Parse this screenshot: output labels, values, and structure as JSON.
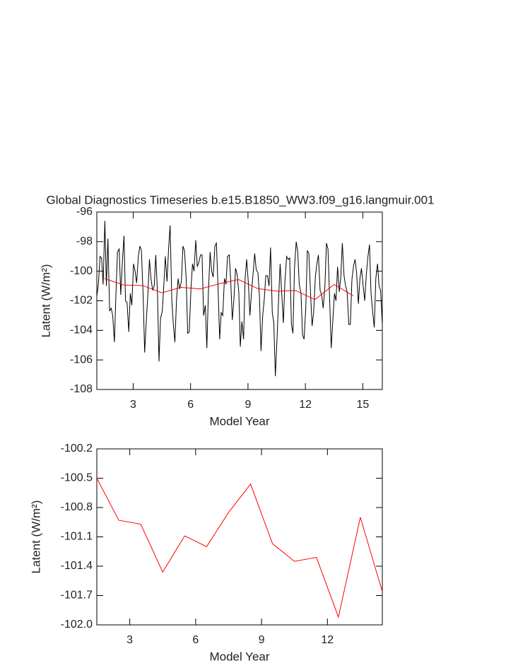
{
  "chart_data": [
    {
      "type": "line",
      "title": "Global Diagnostics Timeseries b.e15.B1850_WW3.f09_g16.langmuir.001",
      "xlabel": "Model Year",
      "ylabel": "Latent (W/m²)",
      "xlim": [
        1.1,
        16.02
      ],
      "xticks": [
        3,
        6,
        9,
        12,
        15
      ],
      "ylim": [
        -108,
        -96
      ],
      "yticks": [
        -108,
        -106,
        -104,
        -102,
        -100,
        -98,
        -96
      ],
      "series": [
        {
          "color": "#000000",
          "x": [
            1.1,
            1.18,
            1.27,
            1.35,
            1.43,
            1.52,
            1.6,
            1.68,
            1.77,
            1.85,
            1.93,
            2.02,
            2.1,
            2.18,
            2.27,
            2.35,
            2.43,
            2.52,
            2.6,
            2.68,
            2.77,
            2.85,
            2.93,
            3.02,
            3.1,
            3.18,
            3.27,
            3.35,
            3.43,
            3.52,
            3.6,
            3.68,
            3.77,
            3.85,
            3.93,
            4.02,
            4.1,
            4.18,
            4.27,
            4.35,
            4.43,
            4.52,
            4.6,
            4.68,
            4.77,
            4.85,
            4.93,
            5.02,
            5.1,
            5.18,
            5.27,
            5.35,
            5.43,
            5.52,
            5.6,
            5.68,
            5.77,
            5.85,
            5.93,
            6.02,
            6.1,
            6.18,
            6.27,
            6.35,
            6.43,
            6.52,
            6.6,
            6.68,
            6.77,
            6.85,
            6.93,
            7.02,
            7.1,
            7.18,
            7.27,
            7.35,
            7.43,
            7.52,
            7.6,
            7.68,
            7.77,
            7.85,
            7.93,
            8.02,
            8.1,
            8.18,
            8.27,
            8.35,
            8.43,
            8.52,
            8.6,
            8.68,
            8.77,
            8.85,
            8.93,
            9.02,
            9.1,
            9.18,
            9.27,
            9.35,
            9.43,
            9.52,
            9.6,
            9.68,
            9.77,
            9.85,
            9.93,
            10.02,
            10.1,
            10.18,
            10.27,
            10.35,
            10.43,
            10.52,
            10.6,
            10.68,
            10.77,
            10.85,
            10.93,
            11.02,
            11.1,
            11.18,
            11.27,
            11.35,
            11.43,
            11.52,
            11.6,
            11.68,
            11.77,
            11.85,
            11.93,
            12.02,
            12.1,
            12.18,
            12.27,
            12.35,
            12.43,
            12.52,
            12.6,
            12.68,
            12.77,
            12.85,
            12.93,
            13.02,
            13.1,
            13.18,
            13.27,
            13.35,
            13.43,
            13.52,
            13.6,
            13.68,
            13.77,
            13.85,
            13.93,
            14.02,
            14.1,
            14.18,
            14.27,
            14.35,
            14.43,
            14.52,
            14.6,
            14.68,
            14.77,
            14.85,
            14.93,
            15.02,
            15.1,
            15.18,
            15.27,
            15.35,
            15.43,
            15.52,
            15.6,
            15.68,
            15.77,
            15.85,
            15.93,
            16.02
          ],
          "values": [
            -101.7,
            -100.9,
            -99.0,
            -99.1,
            -100.9,
            -96.6,
            -101.0,
            -97.8,
            -102.7,
            -102.5,
            -103.0,
            -104.8,
            -101.5,
            -98.7,
            -98.5,
            -101.6,
            -99.5,
            -97.6,
            -102.0,
            -102.1,
            -104.1,
            -101.5,
            -102.3,
            -99.5,
            -100.0,
            -100.8,
            -99.0,
            -98.3,
            -98.6,
            -101.6,
            -105.5,
            -103.5,
            -101.5,
            -99.2,
            -100.5,
            -101.3,
            -101.0,
            -98.9,
            -101.5,
            -106.1,
            -103.2,
            -102.7,
            -101.0,
            -99.0,
            -100.7,
            -98.5,
            -96.9,
            -102.0,
            -103.6,
            -104.8,
            -101.8,
            -100.5,
            -101.2,
            -100.7,
            -98.3,
            -98.6,
            -100.5,
            -104.2,
            -104.1,
            -101.2,
            -99.5,
            -100.0,
            -97.9,
            -99.7,
            -99.4,
            -98.9,
            -98.9,
            -103.0,
            -102.3,
            -105.2,
            -101.5,
            -98.7,
            -100.0,
            -100.4,
            -98.3,
            -98.1,
            -100.9,
            -104.6,
            -102.8,
            -103.0,
            -100.5,
            -100.9,
            -99.0,
            -98.9,
            -100.7,
            -103.3,
            -101.8,
            -99.8,
            -100.2,
            -101.4,
            -105.1,
            -103.4,
            -104.6,
            -100.5,
            -99.2,
            -100.8,
            -103.0,
            -101.5,
            -100.1,
            -98.8,
            -99.9,
            -100.1,
            -101.7,
            -105.4,
            -103.0,
            -101.9,
            -100.3,
            -100.3,
            -101.0,
            -98.4,
            -102.8,
            -103.5,
            -107.1,
            -104.5,
            -101.9,
            -99.5,
            -101.7,
            -103.5,
            -100.7,
            -99.0,
            -99.2,
            -99.1,
            -103.6,
            -104.2,
            -99.8,
            -98.0,
            -98.7,
            -100.9,
            -101.5,
            -104.3,
            -104.6,
            -102.5,
            -98.6,
            -98.8,
            -101.5,
            -103.7,
            -102.8,
            -100.4,
            -99.5,
            -98.9,
            -101.3,
            -101.6,
            -102.5,
            -101.0,
            -98.1,
            -98.5,
            -102.0,
            -105.2,
            -103.4,
            -101.5,
            -102.0,
            -99.7,
            -101.4,
            -100.4,
            -98.1,
            -100.3,
            -101.0,
            -101.4,
            -103.6,
            -103.6,
            -100.6,
            -99.6,
            -99.2,
            -100.2,
            -102.2,
            -100.5,
            -99.8,
            -101.0,
            -102.0,
            -100.3,
            -99.0,
            -98.2,
            -101.5,
            -102.8,
            -103.8,
            -100.5,
            -99.5,
            -101.0,
            -101.3,
            -103.6
          ]
        },
        {
          "color": "#ff0000",
          "x": [
            1.5,
            2.5,
            3.5,
            4.5,
            5.5,
            6.5,
            7.5,
            8.5,
            9.5,
            10.5,
            11.5,
            12.5,
            13.5,
            14.5
          ],
          "values": [
            -100.5,
            -100.93,
            -100.97,
            -101.46,
            -101.09,
            -101.2,
            -100.85,
            -100.56,
            -101.17,
            -101.35,
            -101.31,
            -101.92,
            -100.9,
            -101.66
          ]
        }
      ]
    },
    {
      "type": "line",
      "xlabel": "Model Year",
      "ylabel": "Latent (W/m²)",
      "xlim": [
        1.5,
        14.5
      ],
      "xticks": [
        3,
        6,
        9,
        12
      ],
      "ylim": [
        -102,
        -100.2
      ],
      "yticks": [
        {
          "value": -102,
          "label": "-102.0"
        },
        -101.7,
        -101.4,
        -101.1,
        -100.8,
        -100.5,
        -100.2
      ],
      "series": [
        {
          "color": "#ff0000",
          "x": [
            1.5,
            2.5,
            3.5,
            4.5,
            5.5,
            6.5,
            7.5,
            8.5,
            9.5,
            10.5,
            11.5,
            12.5,
            13.5,
            14.5
          ],
          "values": [
            -100.5,
            -100.93,
            -100.97,
            -101.46,
            -101.09,
            -101.2,
            -100.85,
            -100.56,
            -101.17,
            -101.35,
            -101.31,
            -101.92,
            -100.9,
            -101.66
          ]
        }
      ]
    }
  ]
}
